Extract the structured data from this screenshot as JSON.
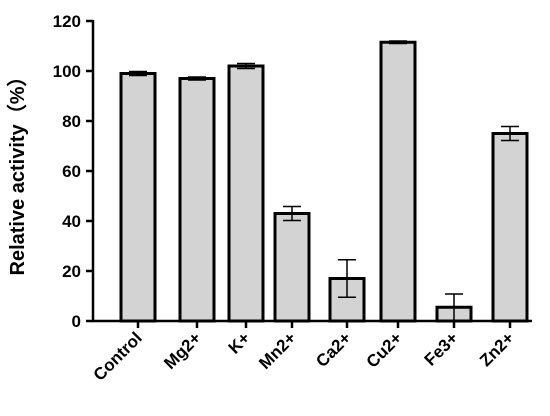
{
  "chart_data": {
    "type": "bar",
    "title": "",
    "xlabel": "",
    "ylabel": "Relative activity（%）",
    "ylim": [
      0,
      120
    ],
    "yticks": [
      0,
      20,
      40,
      60,
      80,
      100,
      120
    ],
    "categories": [
      "Control",
      "Mg2+",
      "K+",
      "Mn2+",
      "Ca2+",
      "Cu2+",
      "Fe3+",
      "Zn2+"
    ],
    "values": [
      99,
      97,
      102,
      43,
      17,
      111.5,
      5.5,
      75
    ],
    "errors": [
      0.8,
      0.6,
      1.0,
      2.8,
      7.5,
      0.5,
      5.3,
      2.8
    ],
    "grid": false,
    "bar_color": "#d3d3d3",
    "edge_color": "#000000"
  }
}
